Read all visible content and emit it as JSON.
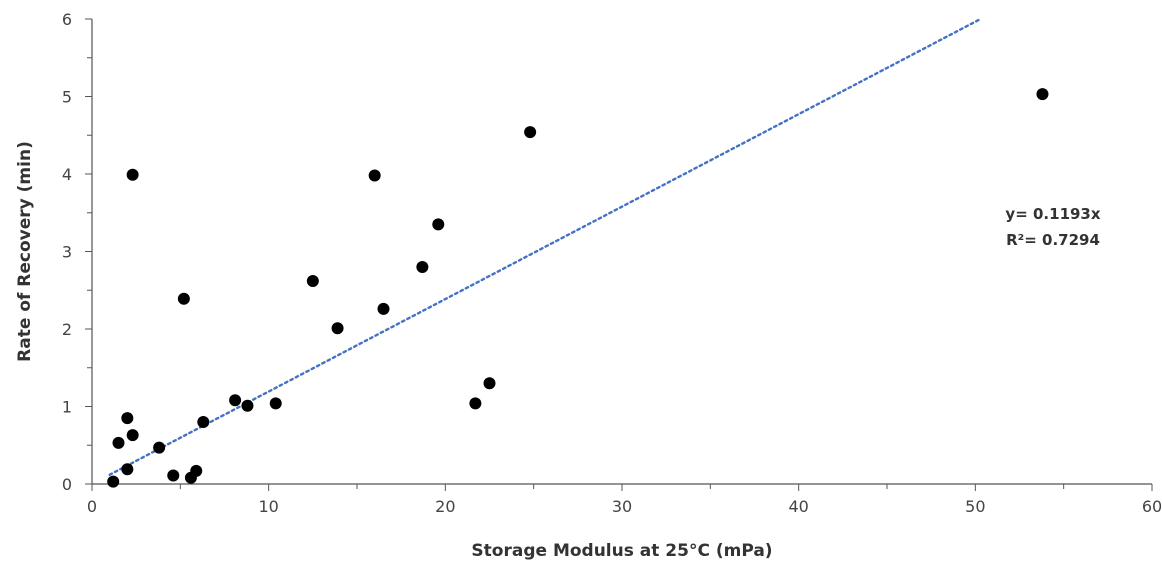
{
  "chart_data": {
    "type": "scatter",
    "title": "",
    "xlabel": "Storage Modulus at 25°C (mPa)",
    "ylabel": "Rate of Recovery (min)",
    "xlim": [
      0,
      60
    ],
    "ylim": [
      0,
      6
    ],
    "xticks": [
      0,
      10,
      20,
      30,
      40,
      50,
      60
    ],
    "yticks": [
      0,
      1,
      2,
      3,
      4,
      5,
      6
    ],
    "grid": false,
    "legend": "none",
    "series": [
      {
        "marker_color": "#000000",
        "points": [
          {
            "x": 1.2,
            "y": 0.03
          },
          {
            "x": 1.5,
            "y": 0.53
          },
          {
            "x": 2.0,
            "y": 0.19
          },
          {
            "x": 2.0,
            "y": 0.85
          },
          {
            "x": 2.3,
            "y": 0.63
          },
          {
            "x": 2.3,
            "y": 3.99
          },
          {
            "x": 3.8,
            "y": 0.47
          },
          {
            "x": 4.6,
            "y": 0.11
          },
          {
            "x": 5.2,
            "y": 2.39
          },
          {
            "x": 5.6,
            "y": 0.08
          },
          {
            "x": 5.9,
            "y": 0.17
          },
          {
            "x": 6.3,
            "y": 0.8
          },
          {
            "x": 8.1,
            "y": 1.08
          },
          {
            "x": 8.8,
            "y": 1.01
          },
          {
            "x": 10.4,
            "y": 1.04
          },
          {
            "x": 12.5,
            "y": 2.62
          },
          {
            "x": 13.9,
            "y": 2.01
          },
          {
            "x": 16.0,
            "y": 3.98
          },
          {
            "x": 16.5,
            "y": 2.26
          },
          {
            "x": 18.7,
            "y": 2.8
          },
          {
            "x": 19.6,
            "y": 3.35
          },
          {
            "x": 21.7,
            "y": 1.04
          },
          {
            "x": 22.5,
            "y": 1.3
          },
          {
            "x": 24.8,
            "y": 4.54
          },
          {
            "x": 53.8,
            "y": 5.03
          }
        ]
      }
    ],
    "trendline": {
      "type": "linear",
      "slope": 0.1193,
      "style": "dotted",
      "color": "#4472C4",
      "x_range": [
        1,
        50.3
      ]
    },
    "annotations": [
      "y= 0.1193x",
      "R²= 0.7294"
    ]
  }
}
